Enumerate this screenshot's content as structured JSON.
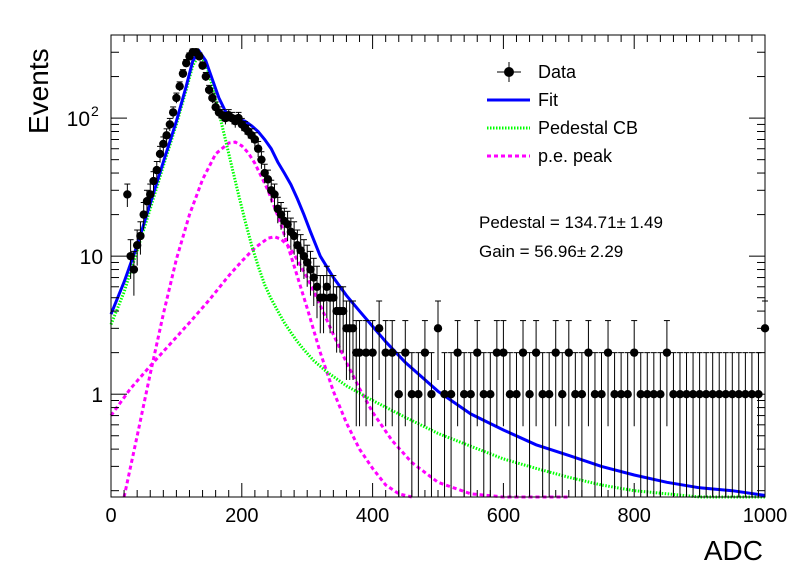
{
  "chart_data": {
    "type": "scatter",
    "title": "",
    "xlabel": "ADC",
    "ylabel": "Events",
    "xlim": [
      0,
      1000
    ],
    "ylim": [
      0.18,
      400
    ],
    "y_scale": "log",
    "x_ticks": [
      "0",
      "200",
      "400",
      "600",
      "800",
      "1000"
    ],
    "y_ticks": [
      {
        "value": 1,
        "label": "1"
      },
      {
        "value": 10,
        "label": "10"
      },
      {
        "value": 100,
        "label": "10",
        "exponent": "2"
      }
    ],
    "legend": {
      "placement": "top-right",
      "items": [
        {
          "label": "Data",
          "style": "marker",
          "color": "#000000"
        },
        {
          "label": "Fit",
          "style": "solid",
          "color": "#0000ff"
        },
        {
          "label": "Pedestal CB",
          "style": "dotted",
          "color": "#00ff00"
        },
        {
          "label": "p.e. peak",
          "style": "dashed",
          "color": "#ff00ff"
        }
      ]
    },
    "annotations": {
      "pedestal": "Pedestal = 134.71",
      "pedestal_err": "1.49",
      "gain": "Gain = 56.96",
      "gain_err": "2.29",
      "pm": "±"
    },
    "data_series": {
      "name": "Data",
      "color": "#000000",
      "x": [
        25,
        30,
        35,
        40,
        45,
        50,
        55,
        60,
        65,
        70,
        75,
        80,
        85,
        90,
        95,
        100,
        105,
        110,
        115,
        120,
        125,
        130,
        135,
        140,
        145,
        150,
        155,
        160,
        165,
        170,
        175,
        180,
        185,
        190,
        195,
        200,
        205,
        210,
        215,
        220,
        225,
        230,
        235,
        240,
        245,
        250,
        255,
        260,
        265,
        270,
        275,
        280,
        285,
        290,
        295,
        300,
        305,
        310,
        315,
        320,
        325,
        330,
        335,
        340,
        345,
        350,
        355,
        360,
        365,
        370,
        375,
        380,
        390,
        400,
        410,
        420,
        430,
        440,
        450,
        460,
        470,
        480,
        490,
        500,
        510,
        520,
        530,
        540,
        550,
        560,
        570,
        580,
        590,
        600,
        610,
        620,
        630,
        640,
        650,
        660,
        670,
        680,
        690,
        700,
        710,
        720,
        730,
        740,
        750,
        760,
        770,
        780,
        790,
        800,
        810,
        820,
        830,
        840,
        850,
        860,
        870,
        880,
        890,
        900,
        910,
        920,
        930,
        940,
        950,
        960,
        970,
        980,
        990,
        1000
      ],
      "y": [
        28,
        10,
        8,
        12,
        14,
        20,
        25,
        28,
        35,
        42,
        55,
        65,
        75,
        90,
        110,
        140,
        170,
        210,
        250,
        280,
        300,
        300,
        280,
        240,
        200,
        160,
        140,
        120,
        110,
        105,
        100,
        105,
        100,
        95,
        100,
        90,
        85,
        80,
        75,
        70,
        60,
        50,
        40,
        36,
        30,
        28,
        22,
        20,
        18,
        17,
        15,
        14,
        12,
        11,
        10,
        9,
        8,
        7,
        6,
        5,
        5,
        6,
        5,
        5,
        4,
        4,
        4,
        3,
        3,
        3,
        2,
        2,
        2,
        2,
        3,
        2,
        2,
        1,
        2,
        1,
        1,
        2,
        1,
        3,
        1,
        1,
        2,
        1,
        1,
        2,
        1,
        1,
        2,
        2,
        1,
        1,
        2,
        1,
        2,
        1,
        1,
        2,
        1,
        2,
        1,
        1,
        2,
        1,
        1,
        2,
        1,
        1,
        1,
        2,
        1,
        1,
        1,
        1,
        2,
        1,
        1,
        1,
        1,
        1,
        1,
        1,
        1,
        1,
        1,
        1,
        1,
        1,
        1,
        3
      ]
    },
    "fit_series": {
      "name": "Fit",
      "color": "#0000ff",
      "x": [
        0,
        20,
        40,
        60,
        80,
        100,
        115,
        125,
        135,
        145,
        155,
        165,
        175,
        185,
        195,
        205,
        215,
        225,
        235,
        245,
        255,
        265,
        275,
        285,
        295,
        305,
        320,
        340,
        360,
        380,
        400,
        420,
        450,
        500,
        550,
        600,
        650,
        700,
        750,
        800,
        850,
        900,
        950,
        1000
      ],
      "y": [
        3.8,
        6.5,
        12,
        24,
        48,
        95,
        170,
        260,
        305,
        260,
        190,
        140,
        112,
        100,
        98,
        95,
        88,
        80,
        70,
        60,
        48,
        40,
        33,
        26,
        20,
        15,
        10,
        7,
        5.2,
        4.0,
        3.1,
        2.4,
        1.7,
        1.05,
        0.72,
        0.55,
        0.43,
        0.36,
        0.3,
        0.26,
        0.23,
        0.21,
        0.2,
        0.185
      ]
    },
    "pedestal_series": {
      "name": "Pedestal CB",
      "color": "#00ff00",
      "x": [
        0,
        20,
        40,
        60,
        80,
        100,
        115,
        125,
        135,
        145,
        155,
        165,
        175,
        185,
        195,
        205,
        215,
        225,
        235,
        245,
        255,
        265,
        275,
        285,
        295,
        310,
        330,
        360,
        400,
        450,
        500,
        550,
        600,
        650,
        700,
        750,
        800,
        850,
        900,
        950,
        1000
      ],
      "y": [
        3.2,
        5.5,
        11,
        22,
        45,
        90,
        160,
        240,
        290,
        250,
        170,
        110,
        70,
        44,
        28,
        18,
        12,
        8.5,
        6.2,
        4.9,
        4.0,
        3.3,
        2.8,
        2.4,
        2.1,
        1.75,
        1.45,
        1.15,
        0.9,
        0.68,
        0.52,
        0.42,
        0.34,
        0.29,
        0.25,
        0.22,
        0.2,
        0.19,
        0.18,
        0.175,
        0.17
      ]
    },
    "pe_peak_1": {
      "name": "p.e. peak",
      "color": "#ff00ff",
      "x": [
        20,
        40,
        60,
        80,
        100,
        120,
        140,
        160,
        180,
        190,
        200,
        210,
        220,
        240,
        260,
        280,
        300,
        320,
        340,
        360,
        380,
        400,
        420,
        440,
        460
      ],
      "y": [
        0.18,
        0.5,
        1.4,
        3.8,
        9.5,
        20,
        36,
        55,
        66,
        67,
        63,
        56,
        47,
        30,
        17,
        8.5,
        4.2,
        2.0,
        1.05,
        0.62,
        0.4,
        0.29,
        0.22,
        0.19,
        0.18
      ]
    },
    "pe_peak_2": {
      "name": "p.e. peak",
      "color": "#ff00ff",
      "x": [
        0,
        30,
        60,
        90,
        120,
        150,
        180,
        200,
        220,
        240,
        250,
        260,
        270,
        280,
        300,
        320,
        340,
        360,
        380,
        400,
        430,
        460,
        500,
        550,
        600,
        650,
        700
      ],
      "y": [
        0.7,
        1.1,
        1.6,
        2.3,
        3.3,
        4.8,
        7.2,
        9.2,
        11.5,
        13.5,
        13.8,
        13.3,
        12.0,
        10.3,
        7.0,
        4.4,
        2.7,
        1.7,
        1.1,
        0.74,
        0.46,
        0.32,
        0.23,
        0.19,
        0.18,
        0.17,
        0.165
      ]
    }
  }
}
